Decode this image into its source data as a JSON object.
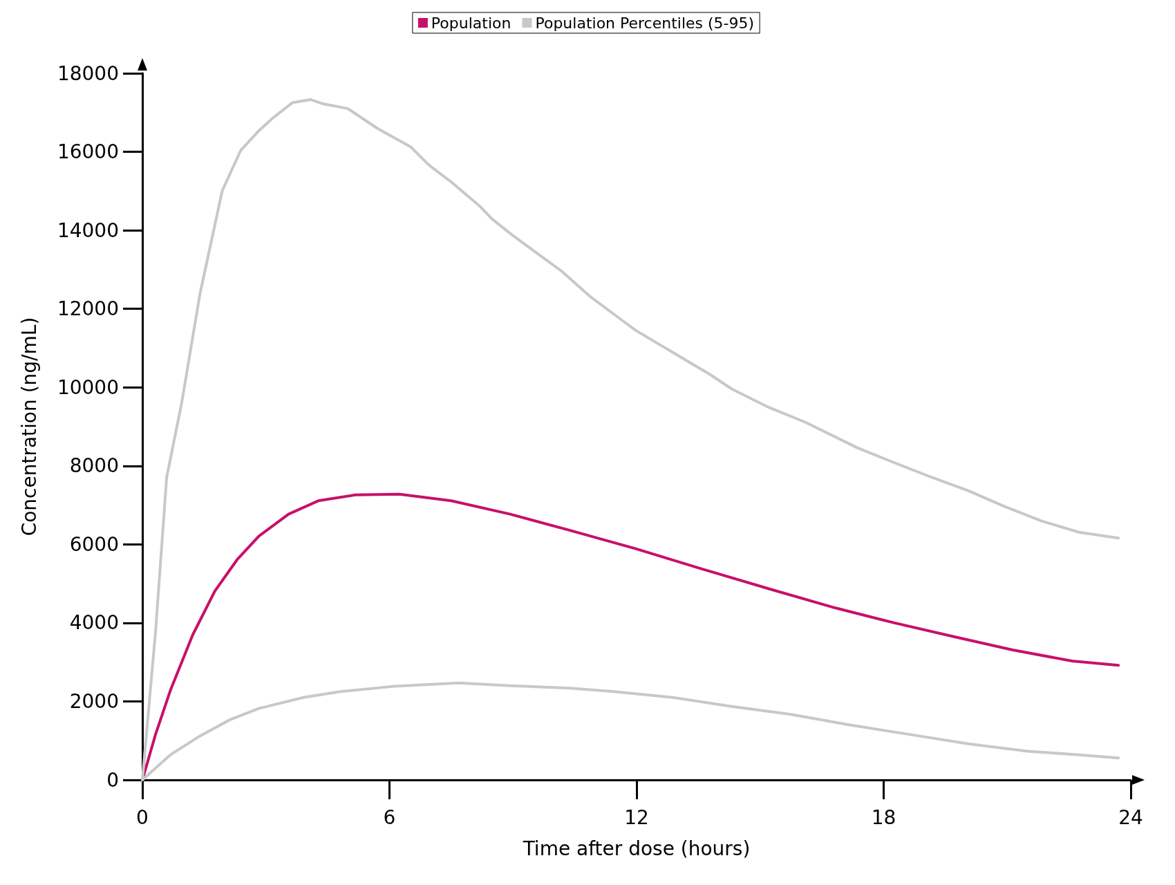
{
  "chart_data": {
    "type": "line",
    "xlabel": "Time after dose (hours)",
    "ylabel": "Concentration (ng/mL)",
    "xlim": [
      0,
      24
    ],
    "xticks": [
      0,
      6,
      12,
      18,
      24
    ],
    "ylim": [
      0,
      18000
    ],
    "yticks": [
      0,
      2000,
      4000,
      6000,
      8000,
      10000,
      12000,
      14000,
      16000,
      18000
    ],
    "grid": false,
    "legend": "top",
    "marker": "none",
    "line_style": "solid",
    "series": [
      {
        "name": "Population",
        "color": "#c8106a",
        "x": [
          0,
          0.32,
          0.68,
          1.22,
          1.76,
          2.3,
          2.83,
          3.55,
          4.27,
          5.17,
          6.24,
          7.5,
          8.93,
          10.37,
          11.98,
          13.6,
          15.21,
          16.83,
          18.26,
          19.7,
          21.13,
          22.57,
          23.7
        ],
        "values": [
          0,
          1160,
          2280,
          3690,
          4810,
          5610,
          6210,
          6770,
          7110,
          7260,
          7280,
          7110,
          6770,
          6360,
          5890,
          5370,
          4870,
          4380,
          4000,
          3650,
          3310,
          3030,
          2920
        ]
      },
      {
        "name": "Population Percentiles (5-95)",
        "color": "#c8c8c8",
        "x": [
          0,
          0.32,
          0.59,
          0.95,
          1.4,
          1.94,
          2.39,
          2.83,
          3.19,
          3.64,
          4.09,
          4.36,
          4.99,
          5.7,
          6.51,
          6.96,
          7.5,
          8.21,
          8.48,
          8.93,
          10.19,
          10.9,
          11.62,
          11.98,
          12.88,
          13.78,
          14.31,
          15.21,
          16.1,
          17.36,
          18.26,
          19.16,
          20.05,
          20.95,
          21.85,
          22.74,
          23.7
        ],
        "values": [
          0,
          3780,
          7710,
          9580,
          12390,
          15010,
          16040,
          16540,
          16880,
          17250,
          17330,
          17230,
          17100,
          16600,
          16130,
          15660,
          15230,
          14600,
          14300,
          13920,
          12950,
          12290,
          11730,
          11450,
          10890,
          10330,
          9960,
          9490,
          9110,
          8460,
          8080,
          7710,
          7370,
          6960,
          6590,
          6310,
          6160
        ]
      },
      {
        "color": "#c8c8c8",
        "x": [
          0,
          0.68,
          1.4,
          2.12,
          2.83,
          3.91,
          4.81,
          6.06,
          7.68,
          8.93,
          10.37,
          11.45,
          12.88,
          14.31,
          15.75,
          17.18,
          18.62,
          20.05,
          21.49,
          22.74,
          23.7
        ],
        "values": [
          0,
          640,
          1120,
          1530,
          1820,
          2100,
          2250,
          2380,
          2470,
          2400,
          2340,
          2250,
          2100,
          1870,
          1670,
          1400,
          1160,
          920,
          730,
          640,
          560
        ]
      }
    ]
  }
}
